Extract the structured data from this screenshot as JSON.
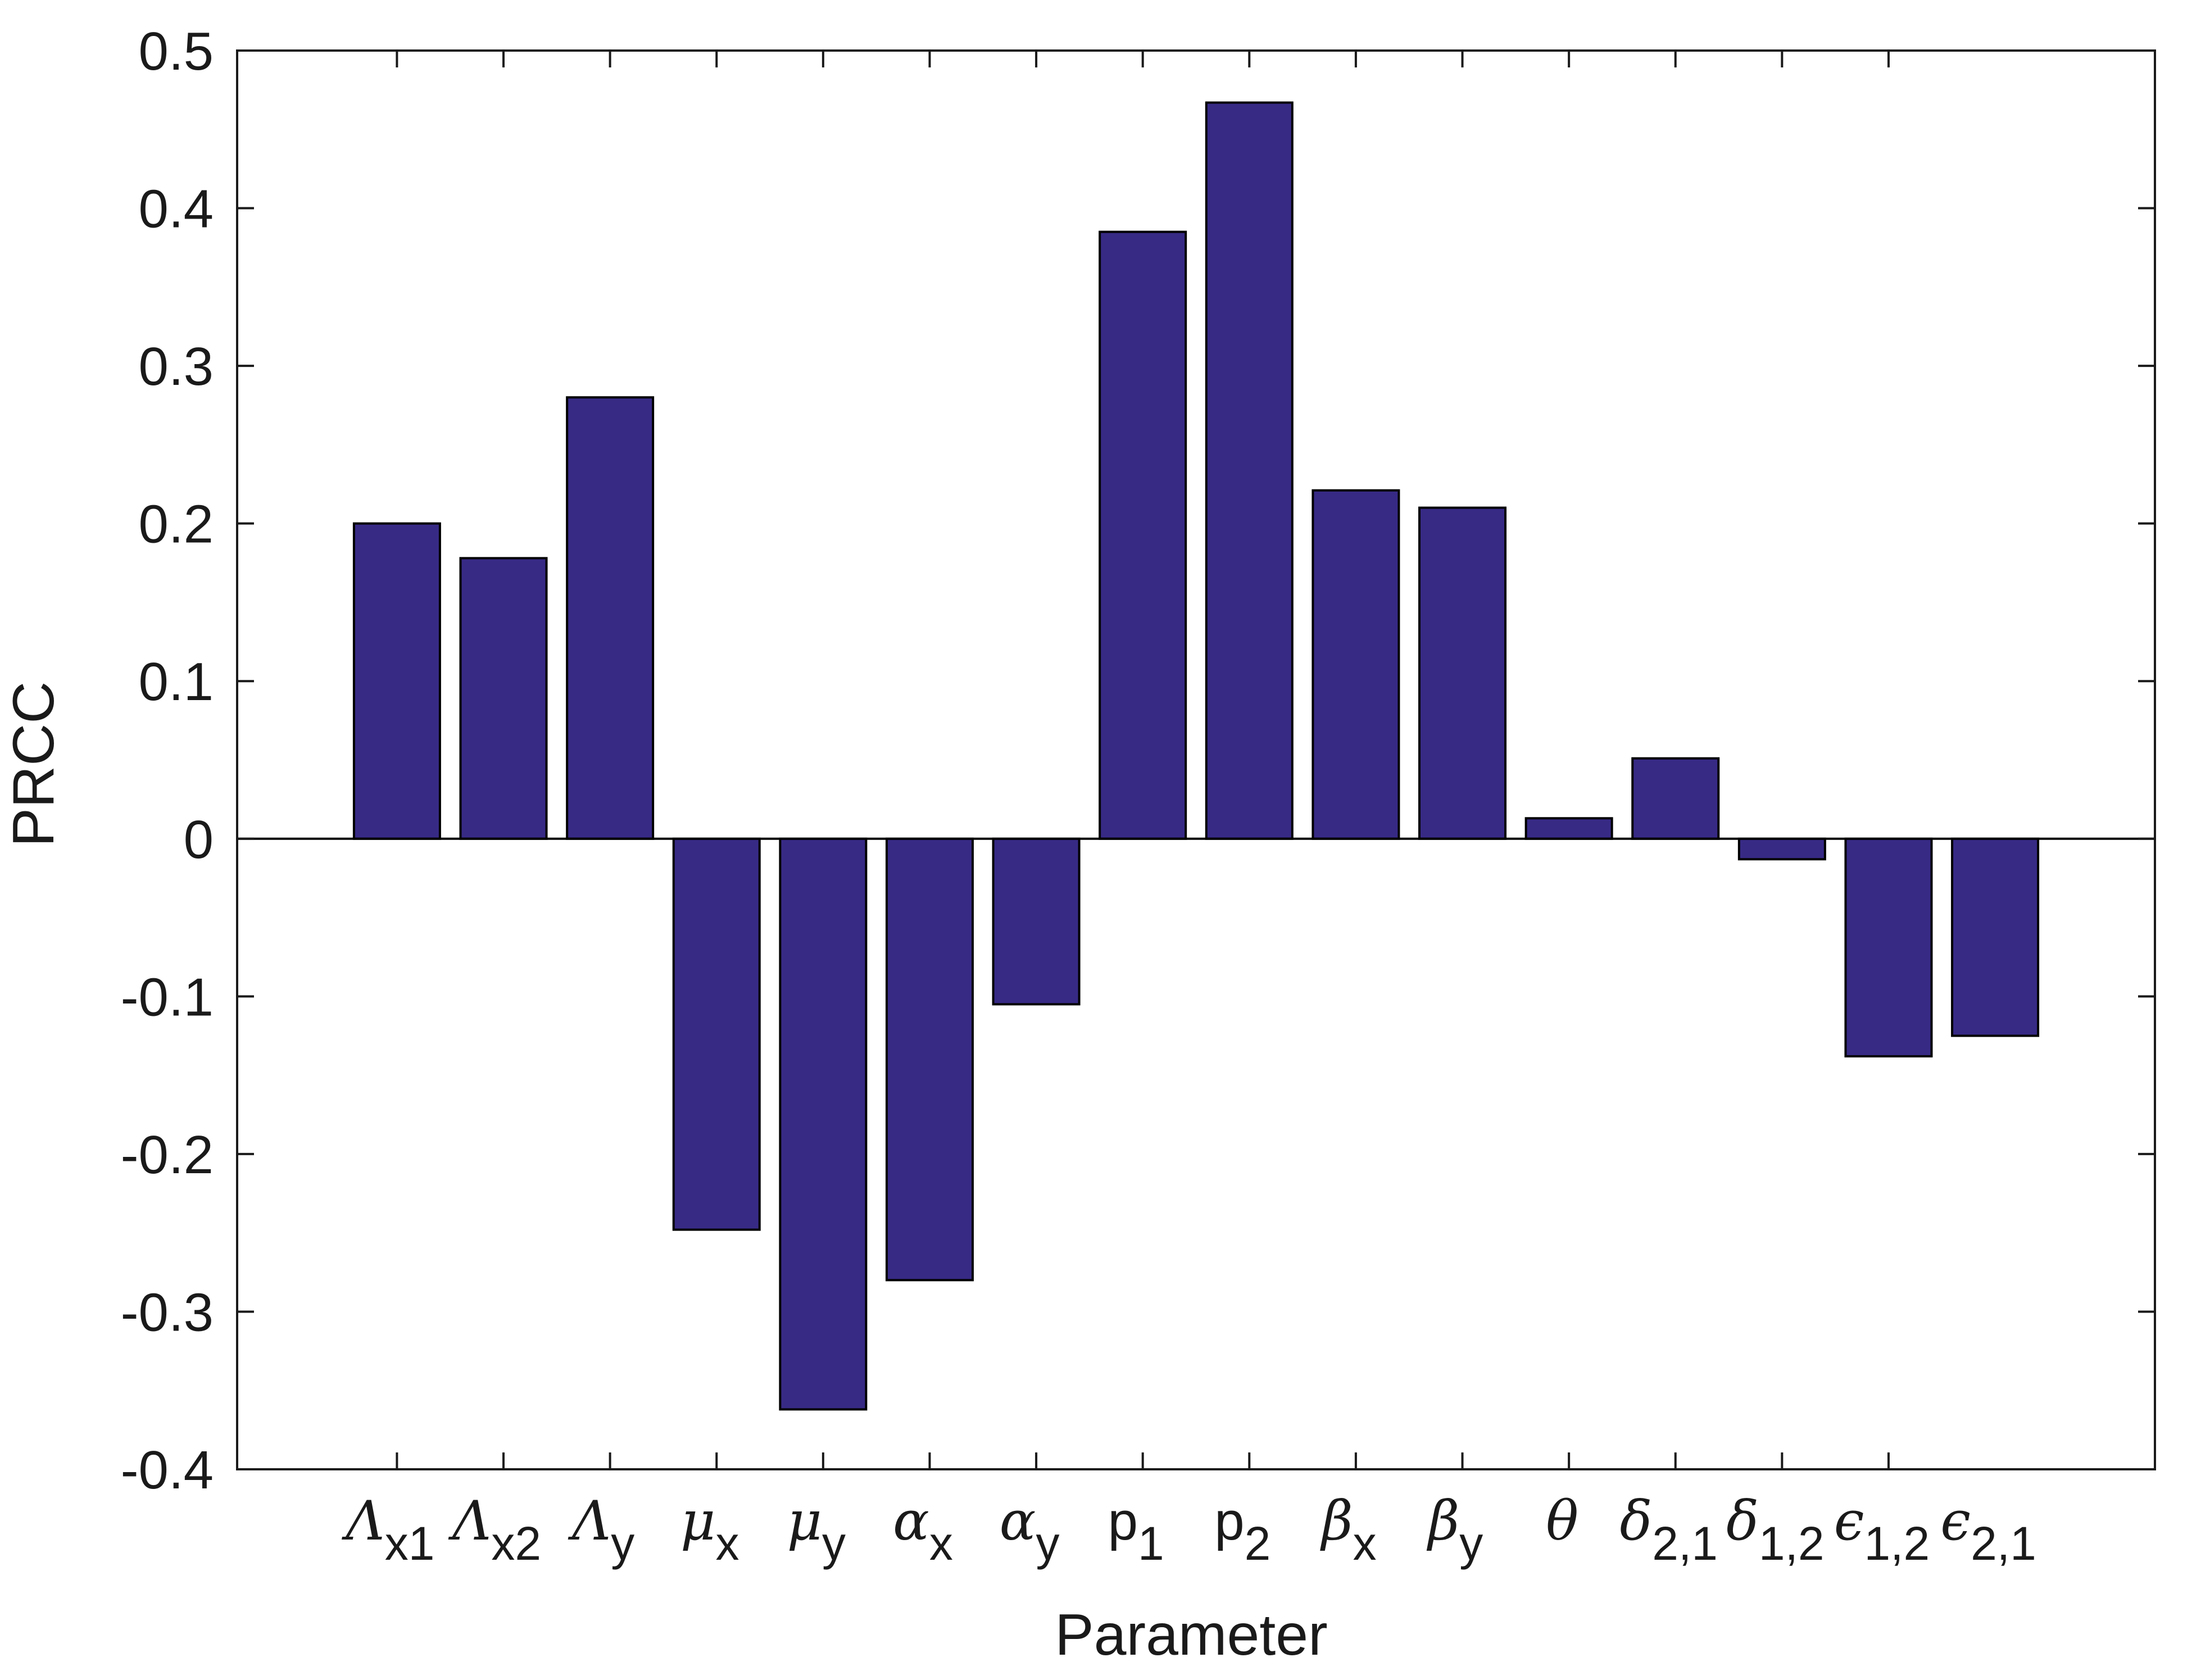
{
  "chart_data": {
    "type": "bar",
    "title": "",
    "xlabel": "Parameter",
    "ylabel": "PRCC",
    "ylim": [
      -0.4,
      0.5
    ],
    "yticks": [
      -0.4,
      -0.3,
      -0.2,
      -0.1,
      0,
      0.1,
      0.2,
      0.3,
      0.4,
      0.5
    ],
    "ytick_labels": [
      "-0.4",
      "-0.3",
      "-0.2",
      "-0.1",
      "0",
      "0.1",
      "0.2",
      "0.3",
      "0.4",
      "0.5"
    ],
    "grid": false,
    "legend": "none",
    "bar_color": "#372a85",
    "bar_edge_color": "#000000",
    "categories": [
      {
        "base": "Λ",
        "sub": "x1",
        "greek": true
      },
      {
        "base": "Λ",
        "sub": "x2",
        "greek": true
      },
      {
        "base": "Λ",
        "sub": "y",
        "greek": true
      },
      {
        "base": "μ",
        "sub": "x",
        "greek": true
      },
      {
        "base": "μ",
        "sub": "y",
        "greek": true
      },
      {
        "base": "α",
        "sub": "x",
        "greek": true
      },
      {
        "base": "α",
        "sub": "y",
        "greek": true
      },
      {
        "base": "p",
        "sub": "1",
        "greek": false
      },
      {
        "base": "p",
        "sub": "2",
        "greek": false
      },
      {
        "base": "β",
        "sub": "x",
        "greek": true
      },
      {
        "base": "β",
        "sub": "y",
        "greek": true
      },
      {
        "base": "θ",
        "sub": "",
        "greek": true
      },
      {
        "base": "δ",
        "sub": "2,1",
        "greek": true
      },
      {
        "base": "δ",
        "sub": "1,2",
        "greek": true
      },
      {
        "base": "ϵ",
        "sub": "1,2",
        "greek": true
      },
      {
        "base": "ϵ",
        "sub": "2,1",
        "greek": true
      }
    ],
    "values": [
      0.2,
      0.178,
      0.28,
      -0.248,
      -0.362,
      -0.28,
      -0.105,
      0.385,
      0.467,
      0.221,
      0.21,
      0.013,
      0.051,
      -0.013,
      -0.138,
      -0.125
    ]
  }
}
